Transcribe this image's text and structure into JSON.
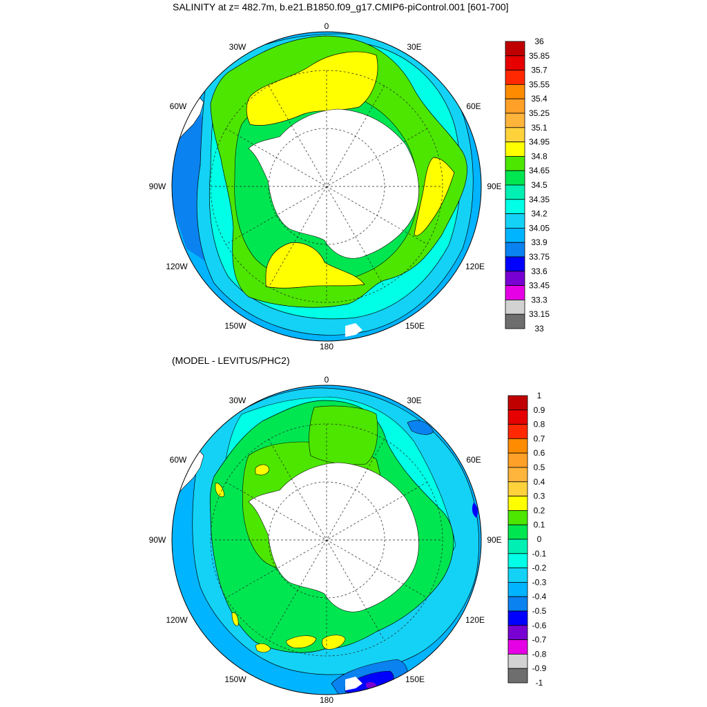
{
  "top_panel": {
    "title": "SALINITY at z= 482.7m, b.e21.B1850.f09_g17.CMIP6-piControl.001 [601-700]",
    "longitude_labels": {
      "top": "0",
      "upper_left": "30W",
      "upper_right": "30E",
      "left_upper": "60W",
      "right_upper": "60E",
      "left": "90W",
      "right": "90E",
      "left_lower": "120W",
      "right_lower": "120E",
      "lower_left": "150W",
      "lower_right": "150E",
      "bottom": "180"
    },
    "colorbar": {
      "labels": [
        "36",
        "35.85",
        "35.7",
        "35.55",
        "35.4",
        "35.25",
        "35.1",
        "34.95",
        "34.8",
        "34.65",
        "34.5",
        "34.35",
        "34.2",
        "34.05",
        "33.9",
        "33.75",
        "33.6",
        "33.45",
        "33.3",
        "33.15",
        "33"
      ],
      "colors": [
        "#c00000",
        "#e60000",
        "#ff2800",
        "#ff8c00",
        "#ffa028",
        "#ffb43c",
        "#ffd23c",
        "#ffff00",
        "#4ce600",
        "#00e650",
        "#00f0b4",
        "#00ffe6",
        "#14d2f5",
        "#00b4ff",
        "#0a82f0",
        "#0000ff",
        "#7800d2",
        "#e600e6",
        "#d2d2d2",
        "#6e6e6e"
      ]
    }
  },
  "bottom_panel": {
    "title": "(MODEL - LEVITUS/PHC2)",
    "longitude_labels": {
      "top": "0",
      "upper_left": "30W",
      "upper_right": "30E",
      "left_upper": "60W",
      "right_upper": "60E",
      "left": "90W",
      "right": "90E",
      "left_lower": "120W",
      "right_lower": "120E",
      "lower_left": "150W",
      "lower_right": "150E",
      "bottom": "180"
    },
    "colorbar": {
      "labels": [
        "1",
        "0.9",
        "0.8",
        "0.7",
        "0.6",
        "0.5",
        "0.4",
        "0.3",
        "0.2",
        "0.1",
        "0",
        "-0.1",
        "-0.2",
        "-0.3",
        "-0.4",
        "-0.5",
        "-0.6",
        "-0.7",
        "-0.8",
        "-0.9",
        "-1"
      ],
      "colors": [
        "#c00000",
        "#e60000",
        "#ff2800",
        "#ff8c00",
        "#ffa028",
        "#ffb43c",
        "#ffd23c",
        "#ffff00",
        "#4ce600",
        "#00e650",
        "#00f0b4",
        "#00ffe6",
        "#14d2f5",
        "#00b4ff",
        "#0a82f0",
        "#0000ff",
        "#7800d2",
        "#e600e6",
        "#d2d2d2",
        "#6e6e6e"
      ]
    }
  },
  "map_colors": {
    "ocean_outer": "#00b4ff",
    "ocean_mid": "#14d2f5",
    "ocean_cyan": "#00ffe6",
    "green_dark": "#4ce600",
    "green": "#00e650",
    "yellow": "#ffff00",
    "blue_deep": "#0a82f0",
    "blue_core": "#0000ff",
    "purple": "#7800d2",
    "land": "#ffffff"
  }
}
